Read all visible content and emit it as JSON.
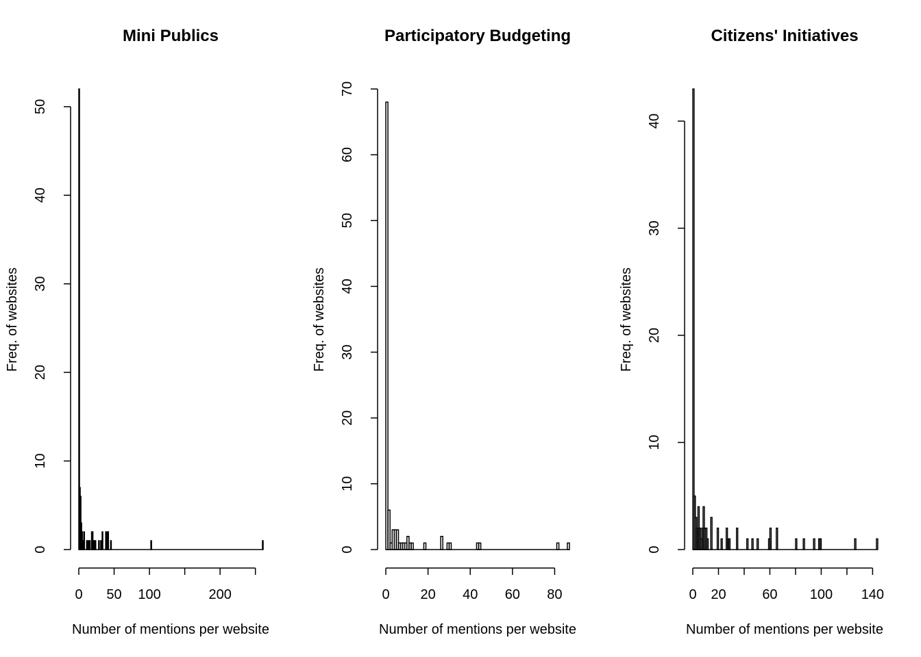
{
  "chart_data": [
    {
      "type": "bar",
      "title": "Mini Publics",
      "xlabel": "Number of mentions per website",
      "ylabel": "Freq. of websites",
      "xlim": [
        0,
        260
      ],
      "ylim": [
        0,
        52
      ],
      "x_ticks": [
        0,
        50,
        100,
        150,
        200,
        250
      ],
      "x_tick_labels": [
        "0",
        "50",
        "100",
        "",
        "200",
        ""
      ],
      "y_ticks": [
        0,
        10,
        20,
        30,
        40,
        50
      ],
      "bin_width": 1,
      "x": [
        0,
        1,
        2,
        3,
        4,
        5,
        7,
        11,
        13,
        15,
        18,
        19,
        20,
        22,
        23,
        28,
        31,
        33,
        38,
        40,
        41,
        45,
        102,
        260
      ],
      "values": [
        52,
        7,
        6,
        3,
        2,
        1,
        2,
        1,
        1,
        1,
        2,
        2,
        1,
        1,
        1,
        1,
        1,
        2,
        2,
        2,
        2,
        1,
        1,
        1
      ],
      "grid": false
    },
    {
      "type": "bar",
      "title": "Participatory Budgeting",
      "xlabel": "Number of mentions per website",
      "ylabel": "Freq. of websites",
      "xlim": [
        0,
        87
      ],
      "ylim": [
        0,
        70
      ],
      "x_ticks": [
        0,
        20,
        40,
        60,
        80
      ],
      "x_tick_labels": [
        "0",
        "20",
        "40",
        "60",
        "80"
      ],
      "y_ticks": [
        0,
        10,
        20,
        30,
        40,
        50,
        60,
        70
      ],
      "bin_width": 1,
      "x": [
        0,
        1,
        2,
        3,
        4,
        5,
        6,
        7,
        8,
        9,
        10,
        11,
        12,
        18,
        26,
        29,
        30,
        43,
        44,
        81,
        86
      ],
      "values": [
        68,
        6,
        1,
        3,
        3,
        3,
        1,
        1,
        1,
        1,
        2,
        1,
        1,
        1,
        2,
        1,
        1,
        1,
        1,
        1,
        1
      ],
      "grid": false
    },
    {
      "type": "bar",
      "title": "Citizens' Initiatives",
      "xlabel": "Number of mentions per website",
      "ylabel": "Freq. of websites",
      "xlim": [
        0,
        143
      ],
      "ylim": [
        0,
        43
      ],
      "x_ticks": [
        0,
        20,
        40,
        60,
        80,
        100,
        120,
        140
      ],
      "x_tick_labels": [
        "0",
        "20",
        "",
        "60",
        "",
        "100",
        "",
        "140"
      ],
      "y_ticks": [
        0,
        10,
        20,
        30,
        40
      ],
      "bin_width": 1,
      "x": [
        0,
        1,
        2,
        3,
        4,
        5,
        6,
        7,
        8,
        9,
        10,
        11,
        14,
        19,
        22,
        26,
        27,
        28,
        34,
        42,
        46,
        50,
        59,
        60,
        65,
        80,
        86,
        94,
        98,
        99,
        126,
        143
      ],
      "values": [
        43,
        5,
        3,
        2,
        4,
        2,
        1,
        2,
        4,
        2,
        2,
        1,
        3,
        2,
        1,
        2,
        1,
        1,
        2,
        1,
        1,
        1,
        1,
        2,
        2,
        1,
        1,
        1,
        1,
        1,
        1,
        1
      ],
      "grid": false
    }
  ]
}
